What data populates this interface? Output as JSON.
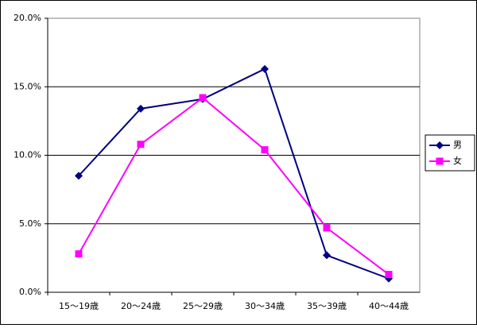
{
  "chart_data": {
    "type": "line",
    "categories": [
      "15～19歳",
      "20～24歳",
      "25～29歳",
      "30～34歳",
      "35～39歳",
      "40～44歳"
    ],
    "series": [
      {
        "name": "男",
        "color": "#000080",
        "marker": "diamond",
        "values": [
          8.5,
          13.4,
          14.1,
          16.3,
          2.7,
          1.0
        ]
      },
      {
        "name": "女",
        "color": "#ff00ff",
        "marker": "square",
        "values": [
          2.8,
          10.8,
          14.2,
          10.4,
          4.7,
          1.3
        ]
      }
    ],
    "ylim": [
      0,
      20
    ],
    "yticks": [
      {
        "value": 0,
        "label": "0.0%"
      },
      {
        "value": 5,
        "label": "5.0%"
      },
      {
        "value": 10,
        "label": "10.0%"
      },
      {
        "value": 15,
        "label": "15.0%"
      },
      {
        "value": 20,
        "label": "20.0%"
      }
    ],
    "grid": true,
    "legend": "right"
  }
}
